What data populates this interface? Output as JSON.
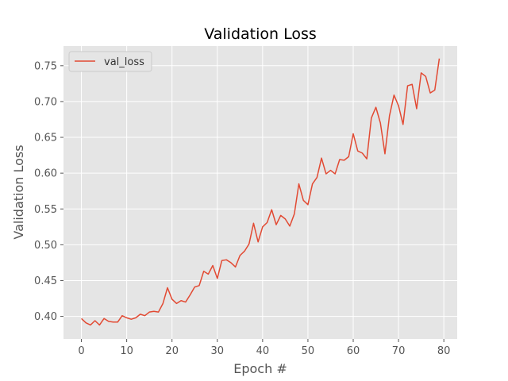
{
  "chart_data": {
    "type": "line",
    "title": "Validation Loss",
    "xlabel": "Epoch #",
    "ylabel": "Validation Loss",
    "xlim": [
      -3.95,
      82.95
    ],
    "ylim": [
      0.3685,
      0.7775
    ],
    "xticks": [
      0,
      10,
      20,
      30,
      40,
      50,
      60,
      70,
      80
    ],
    "yticks": [
      0.4,
      0.45,
      0.5,
      0.55,
      0.6,
      0.65,
      0.7,
      0.75
    ],
    "ytick_labels": [
      "0.40",
      "0.45",
      "0.50",
      "0.55",
      "0.60",
      "0.65",
      "0.70",
      "0.75"
    ],
    "grid": true,
    "legend_position": "top-left",
    "colors": {
      "background": "#e5e5e5",
      "grid": "#ffffff",
      "series": "#e24a33"
    },
    "series": [
      {
        "name": "val_loss",
        "x": [
          0,
          1,
          2,
          3,
          4,
          5,
          6,
          7,
          8,
          9,
          10,
          11,
          12,
          13,
          14,
          15,
          16,
          17,
          18,
          19,
          20,
          21,
          22,
          23,
          24,
          25,
          26,
          27,
          28,
          29,
          30,
          31,
          32,
          33,
          34,
          35,
          36,
          37,
          38,
          39,
          40,
          41,
          42,
          43,
          44,
          45,
          46,
          47,
          48,
          49,
          50,
          51,
          52,
          53,
          54,
          55,
          56,
          57,
          58,
          59,
          60,
          61,
          62,
          63,
          64,
          65,
          66,
          67,
          68,
          69,
          70,
          71,
          72,
          73,
          74,
          75,
          76,
          77,
          78,
          79
        ],
        "values": [
          0.397,
          0.391,
          0.388,
          0.394,
          0.388,
          0.397,
          0.393,
          0.392,
          0.392,
          0.401,
          0.398,
          0.396,
          0.398,
          0.403,
          0.401,
          0.406,
          0.407,
          0.406,
          0.418,
          0.44,
          0.424,
          0.418,
          0.422,
          0.42,
          0.43,
          0.441,
          0.443,
          0.463,
          0.459,
          0.471,
          0.453,
          0.478,
          0.479,
          0.475,
          0.469,
          0.485,
          0.491,
          0.501,
          0.53,
          0.504,
          0.525,
          0.531,
          0.549,
          0.528,
          0.541,
          0.536,
          0.526,
          0.543,
          0.585,
          0.562,
          0.556,
          0.585,
          0.594,
          0.621,
          0.599,
          0.604,
          0.599,
          0.619,
          0.618,
          0.623,
          0.655,
          0.631,
          0.628,
          0.62,
          0.677,
          0.692,
          0.67,
          0.627,
          0.68,
          0.709,
          0.694,
          0.668,
          0.722,
          0.724,
          0.69,
          0.74,
          0.735,
          0.712,
          0.716,
          0.76
        ]
      }
    ]
  }
}
